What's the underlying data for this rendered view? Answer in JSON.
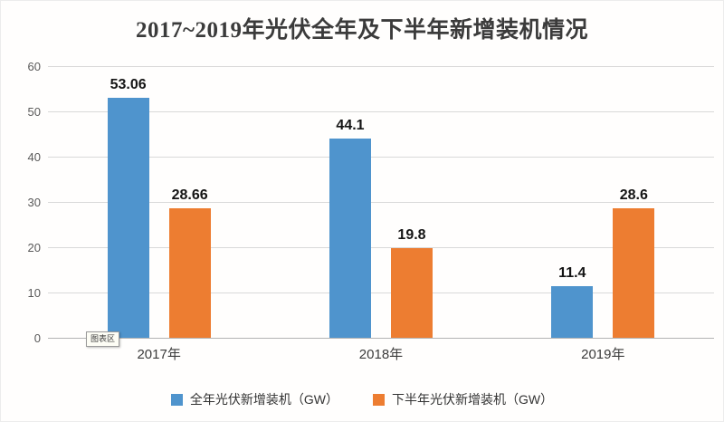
{
  "chart_data": {
    "type": "bar",
    "title": "2017~2019年光伏全年及下半年新增装机情况",
    "categories": [
      "2017年",
      "2018年",
      "2019年"
    ],
    "series": [
      {
        "name": "全年光伏新增装机（GW）",
        "color": "#4f94cd",
        "values": [
          53.06,
          44.1,
          11.4
        ]
      },
      {
        "name": "下半年光伏新增装机（GW）",
        "color": "#ed7d31",
        "values": [
          28.66,
          19.8,
          28.6
        ]
      }
    ],
    "ylim": [
      0,
      60
    ],
    "yticks": [
      0,
      10,
      20,
      30,
      40,
      50,
      60
    ],
    "grid": true,
    "legend_position": "bottom",
    "data_labels": true
  },
  "overlay": {
    "chart_area_tooltip": "图表区"
  }
}
